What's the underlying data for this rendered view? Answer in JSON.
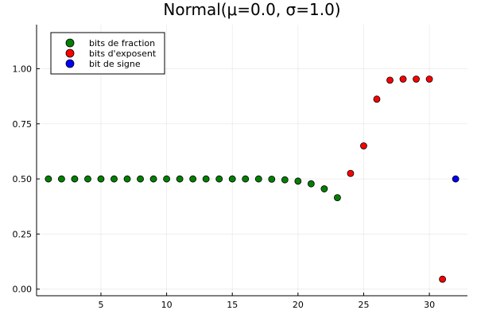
{
  "chart_data": {
    "type": "scatter",
    "title": "Normal(μ=0.0, σ=1.0)",
    "xlabel": "",
    "ylabel": "",
    "xlim": [
      0.1,
      32.9
    ],
    "ylim": [
      -0.03,
      1.2
    ],
    "xticks": [
      5,
      10,
      15,
      20,
      25,
      30
    ],
    "xtick_labels": [
      "5",
      "10",
      "15",
      "20",
      "25",
      "30"
    ],
    "yticks": [
      0.0,
      0.25,
      0.5,
      0.75,
      1.0
    ],
    "ytick_labels": [
      "0.00",
      "0.25",
      "0.50",
      "0.75",
      "1.00"
    ],
    "grid": true,
    "legend_position": "top-left",
    "series": [
      {
        "name": "bits de fraction",
        "color": "#008000",
        "x": [
          1,
          2,
          3,
          4,
          5,
          6,
          7,
          8,
          9,
          10,
          11,
          12,
          13,
          14,
          15,
          16,
          17,
          18,
          19,
          20,
          21,
          22,
          23
        ],
        "y": [
          0.5,
          0.5,
          0.5,
          0.5,
          0.5,
          0.5,
          0.5,
          0.5,
          0.5,
          0.5,
          0.5,
          0.5,
          0.5,
          0.5,
          0.5,
          0.5,
          0.5,
          0.499,
          0.496,
          0.49,
          0.478,
          0.455,
          0.415
        ]
      },
      {
        "name": "bits d'exposent",
        "color": "#ff0000",
        "x": [
          24,
          25,
          26,
          27,
          28,
          29,
          30,
          31
        ],
        "y": [
          0.525,
          0.65,
          0.862,
          0.948,
          0.953,
          0.953,
          0.953,
          0.045
        ]
      },
      {
        "name": "bit de signe",
        "color": "#0000ff",
        "x": [
          32
        ],
        "y": [
          0.5
        ]
      }
    ]
  }
}
